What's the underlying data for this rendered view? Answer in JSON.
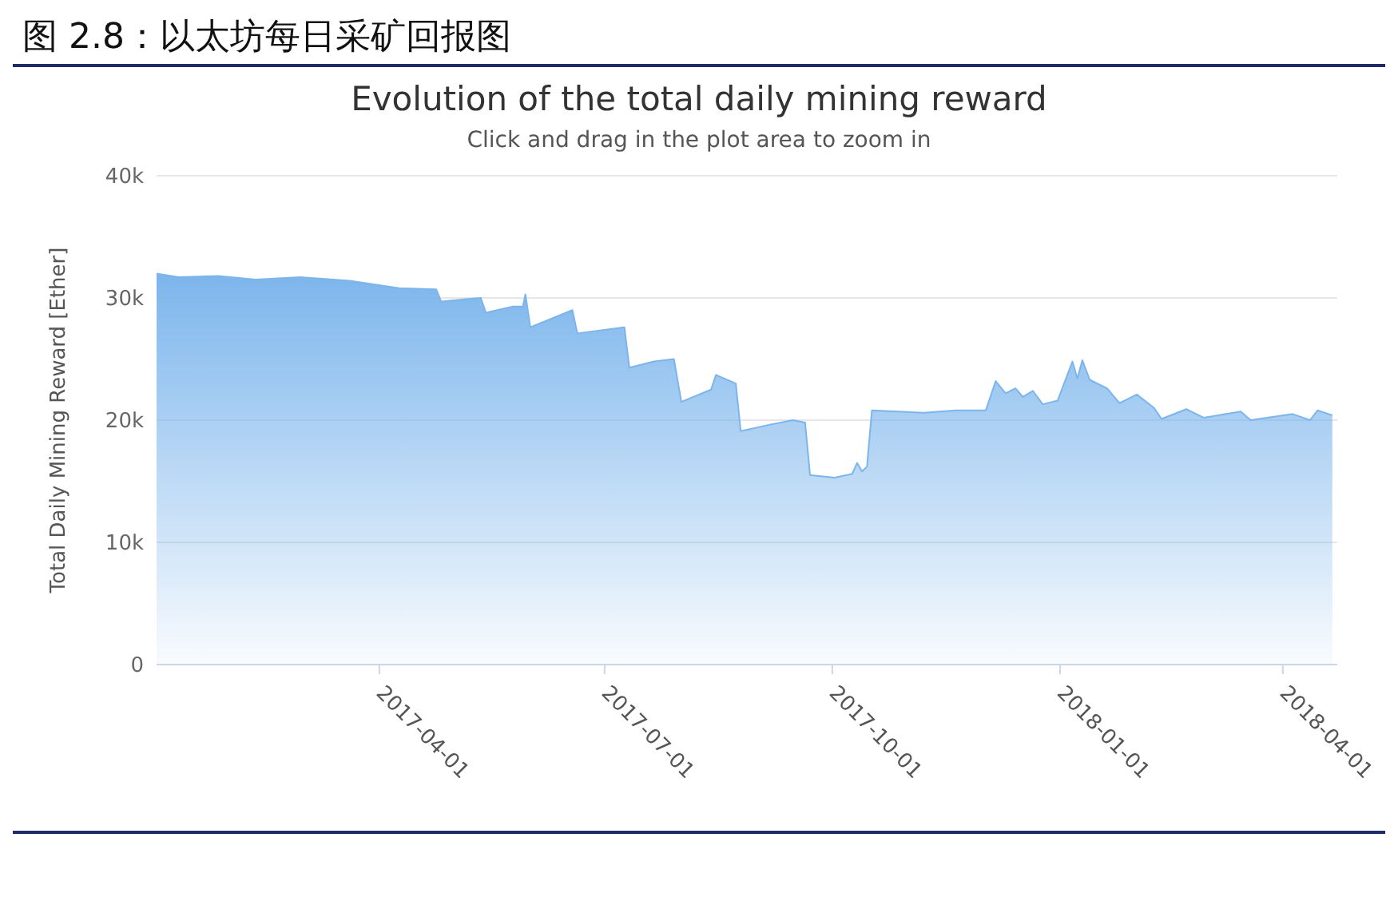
{
  "chart_data": {
    "type": "area",
    "title": "Evolution of the total daily mining reward",
    "subtitle": "Click and drag in the plot area to zoom in",
    "annotations": [
      "图 2.8：以太坊每日采矿回报图"
    ],
    "ylabel": "Total Daily Mining Reward [Ether]",
    "x": [
      "2017-01-01",
      "2017-01-10",
      "2017-01-26",
      "2017-02-10",
      "2017-02-28",
      "2017-03-20",
      "2017-04-09",
      "2017-04-24",
      "2017-04-26",
      "2017-05-06",
      "2017-05-12",
      "2017-05-14",
      "2017-05-25",
      "2017-05-29",
      "2017-05-30",
      "2017-06-01",
      "2017-06-18",
      "2017-06-20",
      "2017-07-09",
      "2017-07-11",
      "2017-07-21",
      "2017-07-29",
      "2017-08-01",
      "2017-08-13",
      "2017-08-15",
      "2017-08-23",
      "2017-08-25",
      "2017-09-05",
      "2017-09-15",
      "2017-09-20",
      "2017-09-22",
      "2017-10-02",
      "2017-10-09",
      "2017-10-11",
      "2017-10-13",
      "2017-10-15",
      "2017-10-17",
      "2017-11-07",
      "2017-11-20",
      "2017-12-02",
      "2017-12-06",
      "2017-12-10",
      "2017-12-14",
      "2017-12-17",
      "2017-12-21",
      "2017-12-25",
      "2017-12-31",
      "2018-01-06",
      "2018-01-08",
      "2018-01-10",
      "2018-01-13",
      "2018-01-20",
      "2018-01-25",
      "2018-02-01",
      "2018-02-08",
      "2018-02-11",
      "2018-02-21",
      "2018-02-28",
      "2018-03-15",
      "2018-03-19",
      "2018-04-05",
      "2018-04-12",
      "2018-04-15",
      "2018-04-21"
    ],
    "series": [
      {
        "color": "#7cb5ec",
        "values": [
          32000,
          31700,
          31800,
          31500,
          31700,
          31400,
          30800,
          30700,
          29700,
          29900,
          30000,
          28800,
          29300,
          29300,
          30300,
          27600,
          29000,
          27100,
          27600,
          24300,
          24800,
          25000,
          21500,
          22500,
          23700,
          23000,
          19100,
          19600,
          20000,
          19800,
          15500,
          15300,
          15600,
          16500,
          15800,
          16200,
          20800,
          20600,
          20800,
          20800,
          23200,
          22200,
          22600,
          21900,
          22400,
          21300,
          21600,
          24800,
          23400,
          24900,
          23300,
          22600,
          21400,
          22100,
          21000,
          20100,
          20900,
          20200,
          20700,
          20000,
          20500,
          20000,
          20800,
          20400
        ]
      }
    ],
    "xlim": [
      "2017-01-01",
      "2018-04-23"
    ],
    "xticks": [
      "2017-04-01",
      "2017-07-01",
      "2017-10-01",
      "2018-01-01",
      "2018-04-01"
    ],
    "ylim": [
      0,
      40000
    ],
    "yticks": [
      0,
      {
        "value": 10000,
        "label": "10k"
      },
      {
        "value": 20000,
        "label": "20k"
      },
      {
        "value": 30000,
        "label": "30k"
      },
      {
        "value": 40000,
        "label": "40k"
      }
    ],
    "grid": "y"
  }
}
